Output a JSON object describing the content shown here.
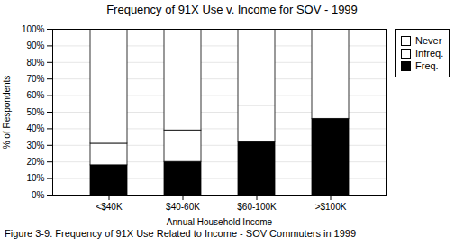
{
  "chart_data": {
    "type": "bar",
    "stacked": true,
    "title": "Frequency of 91X Use v. Income for SOV - 1999",
    "xlabel": "Annual Household Income",
    "ylabel": "% of Respondents",
    "caption": "Figure 3-9. Frequency of 91X Use Related to Income - SOV Commuters in 1999",
    "categories": [
      "<$40K",
      "$40-60K",
      "$60-100K",
      ">$100K"
    ],
    "series": [
      {
        "name": "Freq.",
        "color": "#000000",
        "values": [
          18,
          20,
          32,
          46
        ]
      },
      {
        "name": "Infreq.",
        "color": "#ffffff",
        "values": [
          13,
          19,
          22,
          19
        ]
      },
      {
        "name": "Never",
        "color": "#ffffff",
        "values": [
          69,
          61,
          46,
          35
        ]
      }
    ],
    "ylim": [
      0,
      100
    ],
    "yticks": [
      {
        "value": 0,
        "label": "0%"
      },
      {
        "value": 10,
        "label": "10%"
      },
      {
        "value": 20,
        "label": "20%"
      },
      {
        "value": 30,
        "label": "30%"
      },
      {
        "value": 40,
        "label": "40%"
      },
      {
        "value": 50,
        "label": "50%"
      },
      {
        "value": 60,
        "label": "60%"
      },
      {
        "value": 70,
        "label": "70%"
      },
      {
        "value": 80,
        "label": "80%"
      },
      {
        "value": 90,
        "label": "90%"
      },
      {
        "value": 100,
        "label": "100%"
      }
    ],
    "grid": true,
    "legend": "upper right"
  }
}
